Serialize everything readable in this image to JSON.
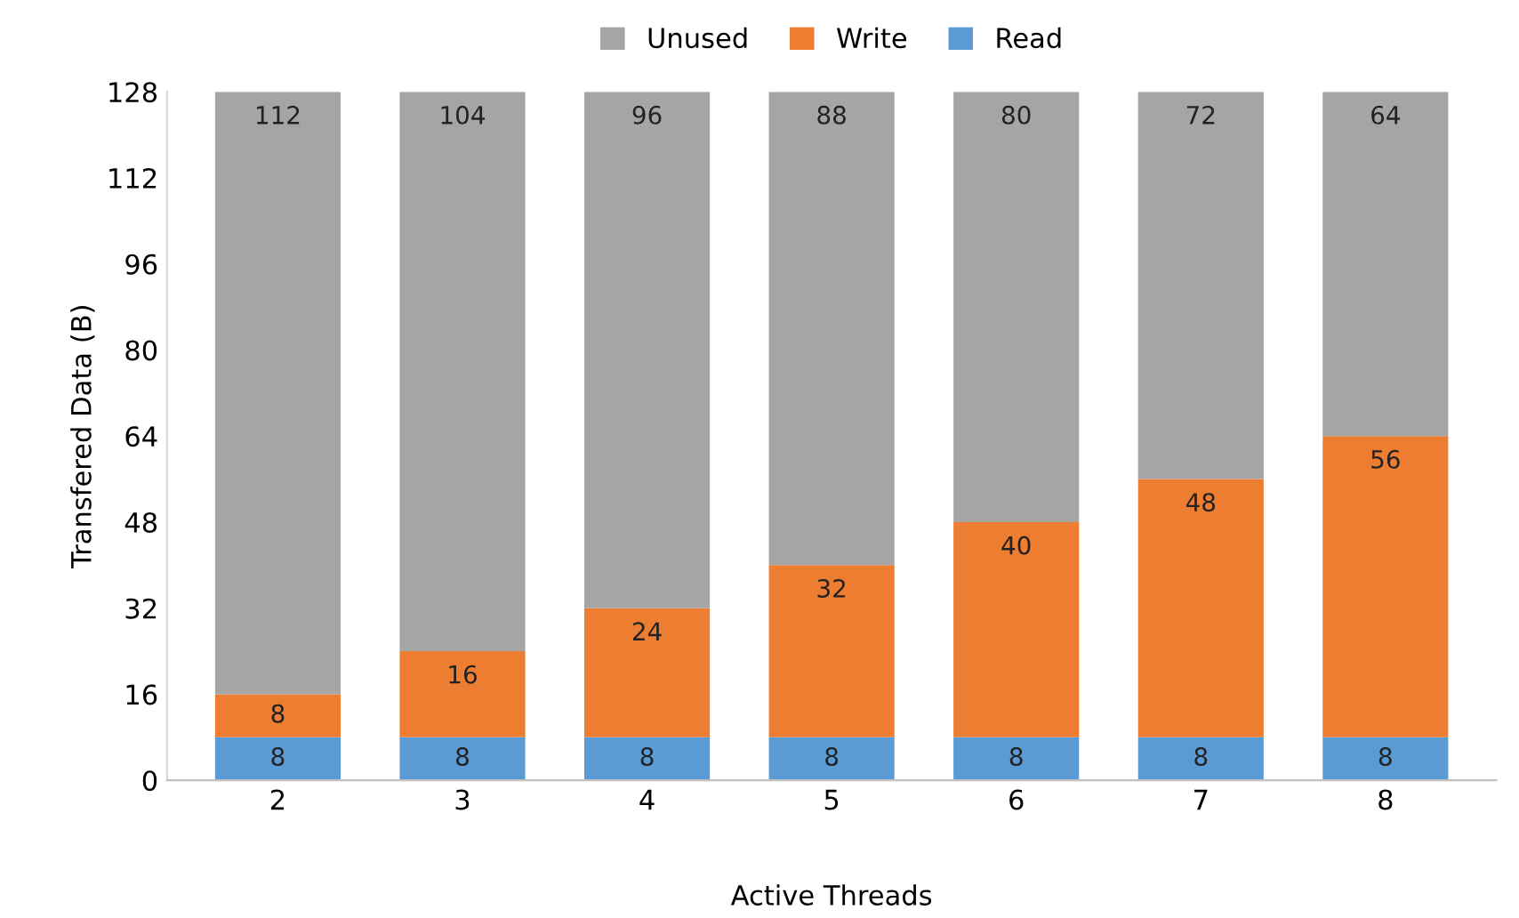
{
  "chart_data": {
    "type": "bar",
    "stacked": true,
    "xlabel": "Active Threads",
    "ylabel": "Transfered Data (B)",
    "categories": [
      "2",
      "3",
      "4",
      "5",
      "6",
      "7",
      "8"
    ],
    "series": [
      {
        "name": "Read",
        "color": "#5b9bd5",
        "values": [
          8,
          8,
          8,
          8,
          8,
          8,
          8
        ]
      },
      {
        "name": "Write",
        "color": "#ed7d31",
        "values": [
          8,
          16,
          24,
          32,
          40,
          48,
          56
        ]
      },
      {
        "name": "Unused",
        "color": "#a5a5a5",
        "values": [
          112,
          104,
          96,
          88,
          80,
          72,
          64
        ]
      }
    ],
    "ylim": [
      0,
      128
    ],
    "yticks": [
      0,
      16,
      32,
      48,
      64,
      80,
      96,
      112,
      128
    ],
    "data_labels": true,
    "grid": false,
    "legend": "top"
  }
}
